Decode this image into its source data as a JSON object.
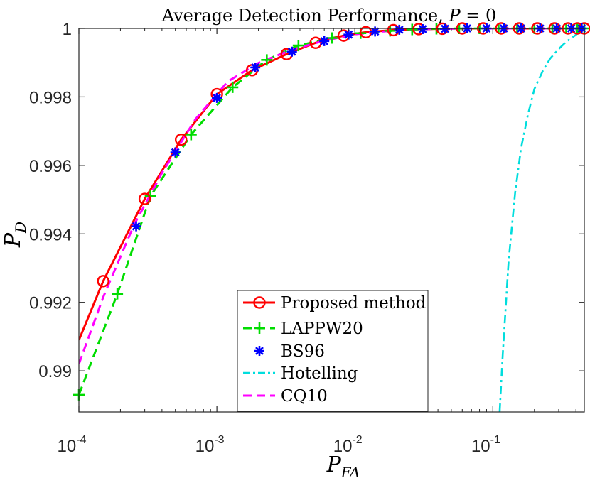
{
  "chart_data": {
    "type": "line",
    "title_prefix": "Average Detection Performance, ",
    "title_var": "P",
    "title_rel": " = 0",
    "x_scale": "log",
    "xlim": [
      0.0001,
      0.46
    ],
    "ylim": [
      0.9888,
      1.0
    ],
    "xlabel_main": "P",
    "xlabel_sub": "FA",
    "ylabel_main": "P",
    "ylabel_sub": "D",
    "grid": false,
    "legend_position": "bottom-center",
    "x_ticks": [
      {
        "value": 0.0001,
        "base": "10",
        "exp": "-4"
      },
      {
        "value": 0.001,
        "base": "10",
        "exp": "-3"
      },
      {
        "value": 0.01,
        "base": "10",
        "exp": "-2"
      },
      {
        "value": 0.1,
        "base": "10",
        "exp": "-1"
      }
    ],
    "y_ticks": [
      {
        "value": 0.99,
        "label": "0.99"
      },
      {
        "value": 0.992,
        "label": "0.992"
      },
      {
        "value": 0.994,
        "label": "0.994"
      },
      {
        "value": 0.996,
        "label": "0.996"
      },
      {
        "value": 0.998,
        "label": "0.998"
      },
      {
        "value": 1.0,
        "label": "1"
      }
    ],
    "series": [
      {
        "name": "Proposed method",
        "color": "#ff0000",
        "line_style": "solid",
        "marker": "circle",
        "x": [
          0.0001,
          0.00015,
          0.0003,
          0.00055,
          0.001,
          0.0018,
          0.0032,
          0.0052,
          0.0083,
          0.012,
          0.019,
          0.029,
          0.043,
          0.06,
          0.085,
          0.115,
          0.155,
          0.21,
          0.28,
          0.35,
          0.41,
          0.46
        ],
        "y": [
          0.9909,
          0.99262,
          0.99502,
          0.99675,
          0.99808,
          0.99878,
          0.99925,
          0.99958,
          0.99979,
          0.99989,
          0.99995,
          0.99998,
          0.99999,
          1.0,
          1.0,
          1.0,
          1.0,
          1.0,
          1.0,
          1.0,
          1.0,
          1.0
        ],
        "marker_x": [
          0.00015,
          0.0003,
          0.00055,
          0.001,
          0.0018,
          0.0032,
          0.0052,
          0.0083,
          0.012,
          0.019,
          0.029,
          0.043,
          0.06,
          0.085,
          0.115,
          0.155,
          0.21,
          0.28,
          0.35,
          0.41,
          0.46
        ]
      },
      {
        "name": "LAPPW20",
        "color": "#00dd00",
        "line_style": "dashed",
        "marker": "plus",
        "x": [
          0.0001,
          0.00019,
          0.00033,
          0.00065,
          0.0013,
          0.0023,
          0.0039,
          0.0068,
          0.011,
          0.018,
          0.026,
          0.039,
          0.057,
          0.08,
          0.11,
          0.15,
          0.2,
          0.27,
          0.34,
          0.41,
          0.46
        ],
        "y": [
          0.9893,
          0.99225,
          0.9951,
          0.9969,
          0.99828,
          0.99908,
          0.9995,
          0.99972,
          0.99986,
          0.99993,
          0.99997,
          0.99999,
          1.0,
          1.0,
          1.0,
          1.0,
          1.0,
          1.0,
          1.0,
          1.0,
          1.0
        ],
        "marker_x": [
          0.0001,
          0.00019,
          0.00033,
          0.00065,
          0.0013,
          0.0023,
          0.0039,
          0.0068,
          0.011,
          0.018,
          0.026,
          0.039,
          0.057,
          0.08,
          0.11,
          0.15,
          0.2,
          0.27,
          0.34,
          0.41,
          0.46
        ]
      },
      {
        "name": "BS96",
        "color": "#0000ff",
        "line_style": "none",
        "marker": "asterisk",
        "x": [
          0.00026,
          0.0005,
          0.001,
          0.0019,
          0.0035,
          0.006,
          0.009,
          0.014,
          0.021,
          0.031,
          0.045,
          0.065,
          0.09,
          0.12,
          0.16,
          0.22,
          0.29,
          0.37,
          0.44
        ],
        "y": [
          0.99422,
          0.99638,
          0.99797,
          0.99886,
          0.99932,
          0.99963,
          0.99982,
          0.99991,
          0.99996,
          0.99998,
          0.99999,
          1.0,
          1.0,
          1.0,
          1.0,
          1.0,
          1.0,
          1.0,
          1.0
        ],
        "marker_x": [
          0.00026,
          0.0005,
          0.001,
          0.0019,
          0.0035,
          0.006,
          0.009,
          0.014,
          0.021,
          0.031,
          0.045,
          0.065,
          0.09,
          0.12,
          0.16,
          0.22,
          0.29,
          0.37,
          0.44
        ]
      },
      {
        "name": "Hotelling",
        "color": "#00dddd",
        "line_style": "dashdot",
        "marker": "none",
        "x": [
          0.112,
          0.118,
          0.13,
          0.145,
          0.16,
          0.18,
          0.2,
          0.23,
          0.26,
          0.3,
          0.34,
          0.39,
          0.43,
          0.46
        ],
        "y": [
          0.9888,
          0.9905,
          0.9932,
          0.9952,
          0.9965,
          0.9975,
          0.99823,
          0.99876,
          0.99912,
          0.9994,
          0.99961,
          0.99978,
          0.99991,
          1.0
        ],
        "marker_x": []
      },
      {
        "name": "CQ10",
        "color": "#ff00ff",
        "line_style": "dashed",
        "marker": "none",
        "x": [
          0.0001,
          0.00015,
          0.00025,
          0.0004,
          0.0007,
          0.0012,
          0.002,
          0.0035,
          0.006,
          0.01,
          0.018,
          0.03,
          0.06,
          0.12,
          0.25,
          0.46
        ],
        "y": [
          0.9902,
          0.99215,
          0.99425,
          0.99578,
          0.99735,
          0.99845,
          0.99899,
          0.99938,
          0.99964,
          0.99983,
          0.99993,
          0.99998,
          1.0,
          1.0,
          1.0,
          1.0
        ],
        "marker_x": []
      }
    ]
  }
}
